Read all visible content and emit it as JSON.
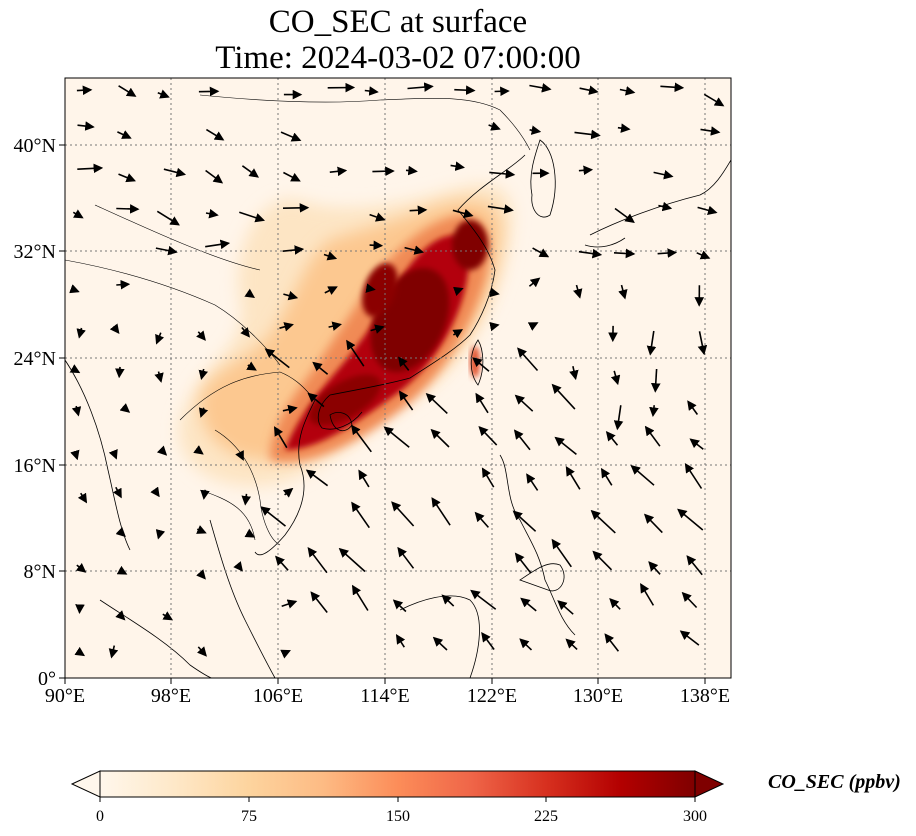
{
  "title": {
    "line1": "CO_SEC at surface",
    "line2": "Time: 2024-03-02 07:00:00"
  },
  "map": {
    "variable": "CO_SEC",
    "level": "surface",
    "lon_range": [
      90,
      140
    ],
    "lat_range": [
      0,
      45
    ],
    "lon_ticks": [
      90,
      98,
      106,
      114,
      122,
      130,
      138
    ],
    "lon_tick_labels": [
      "90°E",
      "98°E",
      "106°E",
      "114°E",
      "122°E",
      "130°E",
      "138°E"
    ],
    "lat_ticks": [
      0,
      8,
      16,
      24,
      32,
      40
    ],
    "lat_tick_labels": [
      "0°",
      "8°N",
      "16°N",
      "24°N",
      "32°N",
      "40°N"
    ],
    "gridlines": true,
    "overlay": "wind vectors (quiver)",
    "colormap": "OrRd"
  },
  "colorbar": {
    "label": "CO_SEC (ppbv)",
    "min": 0,
    "max": 300,
    "ticks": [
      0,
      75,
      150,
      225,
      300
    ],
    "tick_labels": [
      "0",
      "75",
      "150",
      "225",
      "300"
    ],
    "extend": "both",
    "colors": [
      "#fff7ec",
      "#fee8c8",
      "#fdd49e",
      "#fdbb84",
      "#fc8d59",
      "#ef6548",
      "#d7301f",
      "#b30000",
      "#7f0000"
    ]
  }
}
